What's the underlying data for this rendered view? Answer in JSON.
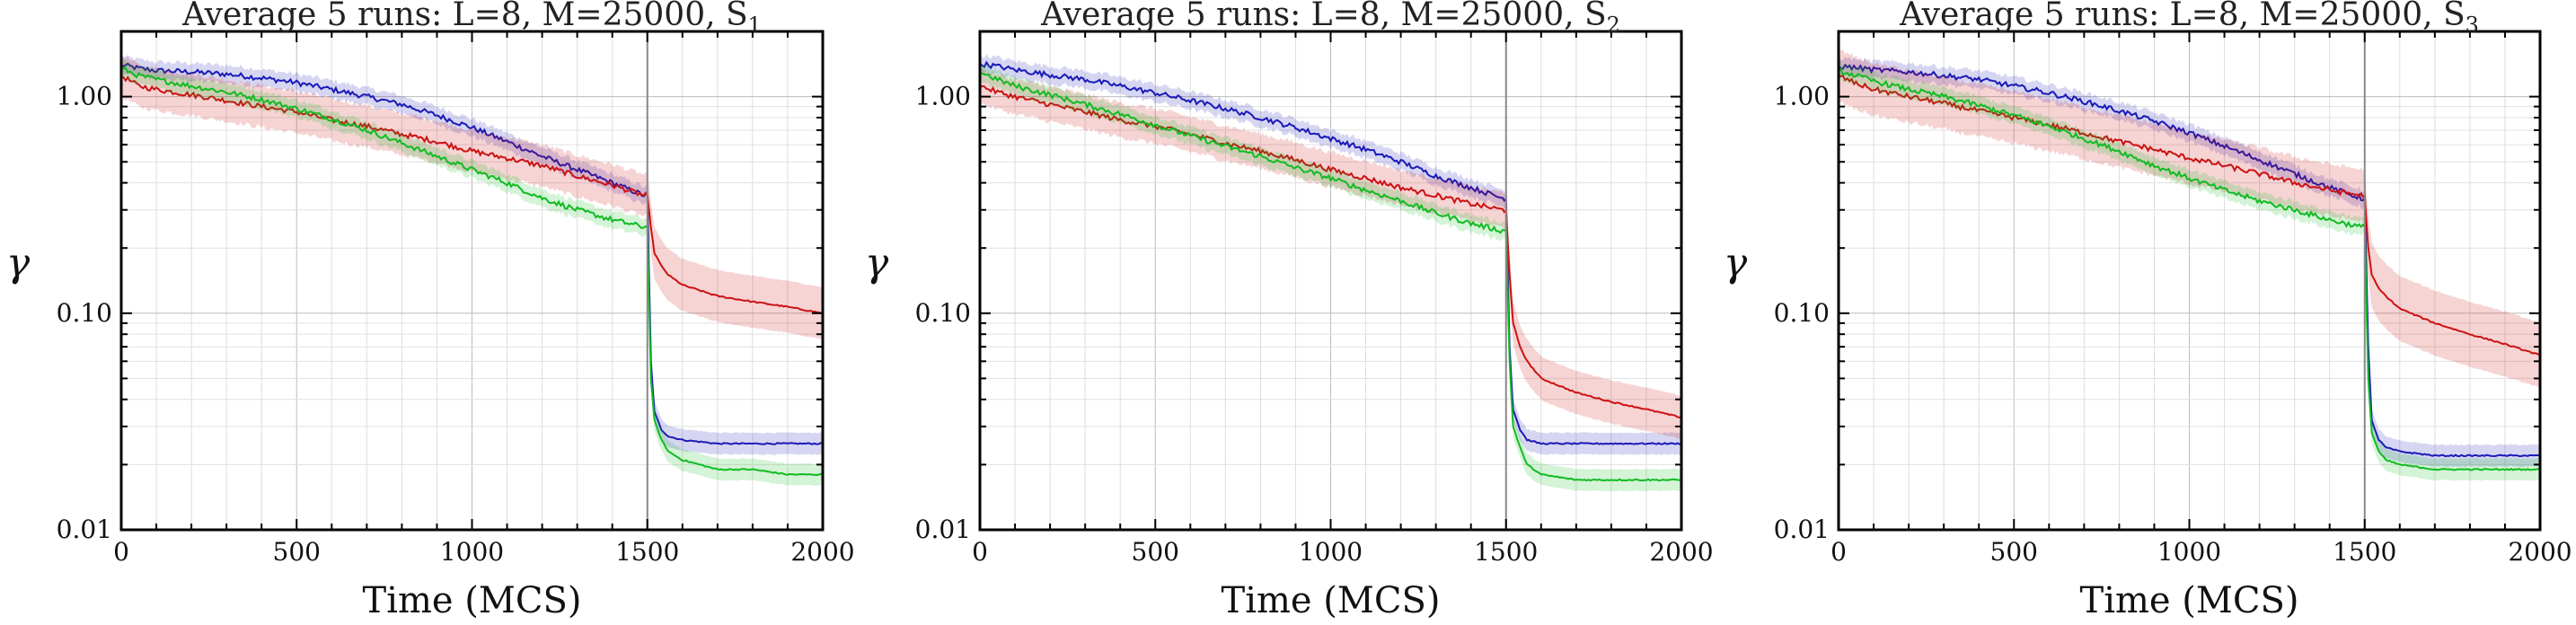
{
  "chart_data": [
    {
      "type": "line",
      "title": "Average 5 runs: L=8, M=25000, S",
      "title_subscript": "1",
      "xlabel": "Time (MCS)",
      "ylabel": "γ",
      "yscale": "log",
      "xlim": [
        0,
        2000
      ],
      "ylim": [
        0.01,
        2.0
      ],
      "xticks": [
        "0",
        "500",
        "1000",
        "1500",
        "2000"
      ],
      "yticks": [
        "1.00",
        "0.10",
        "0.01"
      ],
      "grid": true,
      "vline_x": 1500,
      "series": [
        {
          "color": "#1a1ab8",
          "x": [
            0,
            50,
            100,
            200,
            300,
            400,
            500,
            600,
            700,
            800,
            900,
            1000,
            1100,
            1200,
            1300,
            1400,
            1490,
            1500,
            1510,
            1520,
            1540,
            1560,
            1600,
            1700,
            1800,
            1900,
            2000
          ],
          "y": [
            1.4,
            1.35,
            1.32,
            1.3,
            1.27,
            1.22,
            1.16,
            1.08,
            1.0,
            0.92,
            0.82,
            0.72,
            0.62,
            0.53,
            0.46,
            0.4,
            0.35,
            0.35,
            0.06,
            0.035,
            0.029,
            0.027,
            0.026,
            0.025,
            0.025,
            0.025,
            0.025
          ],
          "band": 0.05
        },
        {
          "color": "#cc1111",
          "x": [
            0,
            50,
            100,
            200,
            300,
            400,
            500,
            600,
            700,
            800,
            900,
            1000,
            1100,
            1200,
            1300,
            1400,
            1490,
            1500,
            1510,
            1520,
            1540,
            1560,
            1600,
            1700,
            1800,
            1900,
            2000
          ],
          "y": [
            1.25,
            1.12,
            1.08,
            1.02,
            0.96,
            0.9,
            0.85,
            0.78,
            0.73,
            0.67,
            0.62,
            0.56,
            0.52,
            0.48,
            0.43,
            0.39,
            0.35,
            0.35,
            0.25,
            0.19,
            0.165,
            0.15,
            0.135,
            0.12,
            0.113,
            0.107,
            0.1
          ],
          "band": 0.12
        },
        {
          "color": "#11bb22",
          "x": [
            0,
            50,
            100,
            200,
            300,
            400,
            500,
            600,
            700,
            800,
            900,
            1000,
            1100,
            1200,
            1300,
            1400,
            1490,
            1500,
            1510,
            1520,
            1540,
            1560,
            1600,
            1700,
            1800,
            1900,
            2000
          ],
          "y": [
            1.35,
            1.25,
            1.2,
            1.12,
            1.05,
            0.97,
            0.88,
            0.79,
            0.7,
            0.61,
            0.53,
            0.46,
            0.4,
            0.34,
            0.3,
            0.27,
            0.25,
            0.25,
            0.05,
            0.032,
            0.026,
            0.023,
            0.021,
            0.019,
            0.019,
            0.018,
            0.018
          ],
          "band": 0.05
        }
      ]
    },
    {
      "type": "line",
      "title": "Average 5 runs: L=8, M=25000, S",
      "title_subscript": "2",
      "xlabel": "Time (MCS)",
      "ylabel": "γ",
      "yscale": "log",
      "xlim": [
        0,
        2000
      ],
      "ylim": [
        0.01,
        2.0
      ],
      "xticks": [
        "0",
        "500",
        "1000",
        "1500",
        "2000"
      ],
      "yticks": [
        "1.00",
        "0.10",
        "0.01"
      ],
      "grid": true,
      "vline_x": 1500,
      "series": [
        {
          "color": "#1a1ab8",
          "x": [
            0,
            50,
            100,
            200,
            300,
            400,
            500,
            600,
            700,
            800,
            900,
            1000,
            1100,
            1200,
            1300,
            1400,
            1490,
            1500,
            1510,
            1520,
            1540,
            1560,
            1600,
            1700,
            1800,
            1900,
            2000
          ],
          "y": [
            1.42,
            1.38,
            1.33,
            1.26,
            1.2,
            1.12,
            1.04,
            0.96,
            0.88,
            0.8,
            0.72,
            0.64,
            0.57,
            0.5,
            0.43,
            0.38,
            0.34,
            0.34,
            0.07,
            0.036,
            0.029,
            0.026,
            0.025,
            0.025,
            0.025,
            0.025,
            0.025
          ],
          "band": 0.05
        },
        {
          "color": "#cc1111",
          "x": [
            0,
            50,
            100,
            200,
            300,
            400,
            500,
            600,
            700,
            800,
            900,
            1000,
            1100,
            1200,
            1300,
            1400,
            1490,
            1500,
            1510,
            1520,
            1540,
            1560,
            1600,
            1700,
            1800,
            1900,
            2000
          ],
          "y": [
            1.12,
            1.05,
            1.0,
            0.92,
            0.85,
            0.78,
            0.73,
            0.67,
            0.61,
            0.56,
            0.51,
            0.46,
            0.42,
            0.38,
            0.35,
            0.32,
            0.3,
            0.3,
            0.15,
            0.09,
            0.07,
            0.06,
            0.05,
            0.043,
            0.039,
            0.036,
            0.033
          ],
          "band": 0.1
        },
        {
          "color": "#11bb22",
          "x": [
            0,
            50,
            100,
            200,
            300,
            400,
            500,
            600,
            700,
            800,
            900,
            1000,
            1100,
            1200,
            1300,
            1400,
            1490,
            1500,
            1510,
            1520,
            1540,
            1560,
            1600,
            1700,
            1800,
            1900,
            2000
          ],
          "y": [
            1.3,
            1.2,
            1.12,
            1.02,
            0.92,
            0.83,
            0.74,
            0.66,
            0.59,
            0.53,
            0.47,
            0.42,
            0.37,
            0.33,
            0.29,
            0.26,
            0.24,
            0.24,
            0.06,
            0.03,
            0.024,
            0.02,
            0.018,
            0.017,
            0.017,
            0.017,
            0.017
          ],
          "band": 0.05
        }
      ]
    },
    {
      "type": "line",
      "title": "Average 5 runs: L=8, M=25000, S",
      "title_subscript": "3",
      "xlabel": "Time (MCS)",
      "ylabel": "γ",
      "yscale": "log",
      "xlim": [
        0,
        2000
      ],
      "ylim": [
        0.01,
        2.0
      ],
      "xticks": [
        "0",
        "500",
        "1000",
        "1500",
        "2000"
      ],
      "yticks": [
        "1.00",
        "0.10",
        "0.01"
      ],
      "grid": true,
      "vline_x": 1500,
      "series": [
        {
          "color": "#1a1ab8",
          "x": [
            0,
            50,
            100,
            200,
            300,
            400,
            500,
            600,
            700,
            800,
            900,
            1000,
            1100,
            1200,
            1300,
            1400,
            1490,
            1500,
            1510,
            1520,
            1540,
            1560,
            1600,
            1700,
            1800,
            1900,
            2000
          ],
          "y": [
            1.38,
            1.36,
            1.33,
            1.3,
            1.25,
            1.2,
            1.12,
            1.04,
            0.95,
            0.86,
            0.77,
            0.68,
            0.59,
            0.51,
            0.44,
            0.38,
            0.34,
            0.34,
            0.07,
            0.032,
            0.026,
            0.024,
            0.023,
            0.022,
            0.022,
            0.022,
            0.022
          ],
          "band": 0.05
        },
        {
          "color": "#cc1111",
          "x": [
            0,
            50,
            100,
            200,
            300,
            400,
            500,
            600,
            700,
            800,
            900,
            1000,
            1100,
            1200,
            1300,
            1400,
            1490,
            1500,
            1510,
            1520,
            1540,
            1560,
            1600,
            1700,
            1800,
            1900,
            2000
          ],
          "y": [
            1.25,
            1.15,
            1.08,
            1.0,
            0.93,
            0.86,
            0.8,
            0.74,
            0.68,
            0.62,
            0.57,
            0.52,
            0.48,
            0.44,
            0.4,
            0.37,
            0.35,
            0.35,
            0.2,
            0.15,
            0.13,
            0.12,
            0.105,
            0.09,
            0.08,
            0.072,
            0.064
          ],
          "band": 0.15
        },
        {
          "color": "#11bb22",
          "x": [
            0,
            50,
            100,
            200,
            300,
            400,
            500,
            600,
            700,
            800,
            900,
            1000,
            1100,
            1200,
            1300,
            1400,
            1490,
            1500,
            1510,
            1520,
            1540,
            1560,
            1600,
            1700,
            1800,
            1900,
            2000
          ],
          "y": [
            1.32,
            1.25,
            1.18,
            1.08,
            1.0,
            0.91,
            0.82,
            0.73,
            0.64,
            0.56,
            0.48,
            0.42,
            0.37,
            0.33,
            0.3,
            0.27,
            0.25,
            0.25,
            0.05,
            0.028,
            0.023,
            0.021,
            0.02,
            0.019,
            0.019,
            0.019,
            0.019
          ],
          "band": 0.05
        }
      ]
    }
  ]
}
